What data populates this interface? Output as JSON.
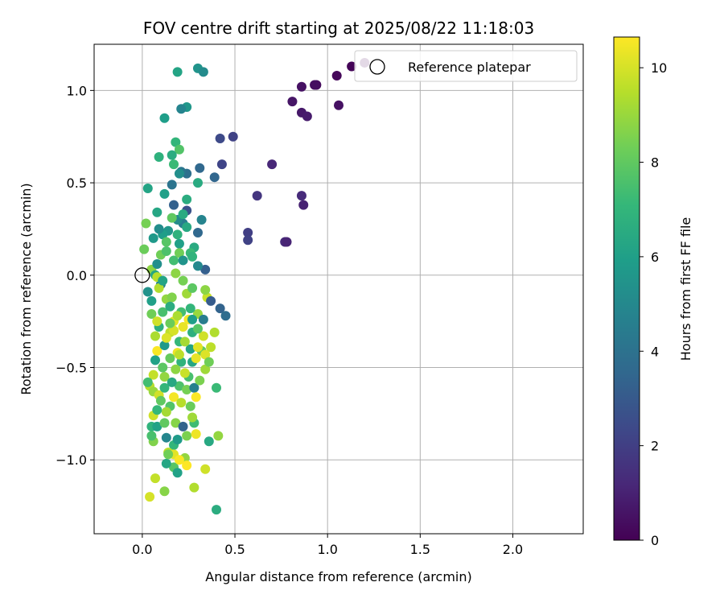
{
  "chart_data": {
    "type": "scatter",
    "title": "FOV centre drift starting at 2025/08/22 11:18:03",
    "xlabel": "Angular distance from reference (arcmin)",
    "ylabel": "Rotation from reference (arcmin)",
    "xlim": [
      -0.26,
      2.38
    ],
    "ylim": [
      -1.4,
      1.25
    ],
    "xticks": [
      0.0,
      0.5,
      1.0,
      1.5,
      2.0
    ],
    "xtick_labels": [
      "0.0",
      "0.5",
      "1.0",
      "1.5",
      "2.0"
    ],
    "yticks": [
      -1.0,
      -0.5,
      0.0,
      0.5,
      1.0
    ],
    "ytick_labels": [
      "−1.0",
      "−0.5",
      "0.0",
      "0.5",
      "1.0"
    ],
    "grid": true,
    "legend": {
      "placement": "top-right",
      "label": "Reference platepar",
      "marker": "open-circle"
    },
    "reference_point": {
      "x": 0.0,
      "y": 0.0
    },
    "colormap": "viridis",
    "colorbar": {
      "label": "Hours from first FF file",
      "range": [
        0,
        10.65
      ],
      "ticks": [
        0,
        2,
        4,
        6,
        8,
        10
      ],
      "tick_labels": [
        "0",
        "2",
        "4",
        "6",
        "8",
        "10"
      ],
      "stops": [
        "#440154",
        "#482878",
        "#3e4989",
        "#31688e",
        "#26828e",
        "#1f9e89",
        "#35b779",
        "#6ece58",
        "#b5de2b",
        "#fde725"
      ]
    },
    "points": [
      {
        "x": 1.13,
        "y": 1.13,
        "h": 0.1
      },
      {
        "x": 1.2,
        "y": 1.15,
        "h": 0.1
      },
      {
        "x": 1.05,
        "y": 1.08,
        "h": 0.2
      },
      {
        "x": 0.94,
        "y": 1.03,
        "h": 0.3
      },
      {
        "x": 0.93,
        "y": 1.03,
        "h": 0.4
      },
      {
        "x": 0.86,
        "y": 1.02,
        "h": 0.5
      },
      {
        "x": 1.06,
        "y": 0.92,
        "h": 0.5
      },
      {
        "x": 0.81,
        "y": 0.94,
        "h": 0.6
      },
      {
        "x": 0.86,
        "y": 0.88,
        "h": 0.7
      },
      {
        "x": 0.89,
        "y": 0.86,
        "h": 0.8
      },
      {
        "x": 0.7,
        "y": 0.6,
        "h": 1.2
      },
      {
        "x": 0.86,
        "y": 0.43,
        "h": 1.3
      },
      {
        "x": 0.87,
        "y": 0.38,
        "h": 1.0
      },
      {
        "x": 0.77,
        "y": 0.18,
        "h": 1.3
      },
      {
        "x": 0.78,
        "y": 0.18,
        "h": 1.1
      },
      {
        "x": 0.62,
        "y": 0.43,
        "h": 1.7
      },
      {
        "x": 0.57,
        "y": 0.23,
        "h": 2.0
      },
      {
        "x": 0.57,
        "y": 0.19,
        "h": 2.1
      },
      {
        "x": 0.49,
        "y": 0.75,
        "h": 2.1
      },
      {
        "x": 0.42,
        "y": 0.74,
        "h": 2.4
      },
      {
        "x": 0.43,
        "y": 0.6,
        "h": 2.2
      },
      {
        "x": 0.39,
        "y": 0.53,
        "h": 3.5
      },
      {
        "x": 0.31,
        "y": 0.58,
        "h": 3.6
      },
      {
        "x": 0.24,
        "y": 0.55,
        "h": 3.9
      },
      {
        "x": 0.21,
        "y": 0.56,
        "h": 4.2
      },
      {
        "x": 0.16,
        "y": 0.49,
        "h": 4.1
      },
      {
        "x": 0.17,
        "y": 0.38,
        "h": 3.3
      },
      {
        "x": 0.24,
        "y": 0.35,
        "h": 2.7
      },
      {
        "x": 0.3,
        "y": 0.23,
        "h": 3.6
      },
      {
        "x": 0.32,
        "y": 0.3,
        "h": 4.8
      },
      {
        "x": 0.34,
        "y": 0.03,
        "h": 3.2
      },
      {
        "x": 0.22,
        "y": 0.28,
        "h": 4.5
      },
      {
        "x": 0.19,
        "y": 0.3,
        "h": 5.1
      },
      {
        "x": 0.14,
        "y": 0.24,
        "h": 5.6
      },
      {
        "x": 0.11,
        "y": 0.22,
        "h": 5.9
      },
      {
        "x": 0.09,
        "y": 0.25,
        "h": 5.2
      },
      {
        "x": 0.2,
        "y": 0.17,
        "h": 6.0
      },
      {
        "x": 0.24,
        "y": 0.26,
        "h": 6.4
      },
      {
        "x": 0.28,
        "y": 0.15,
        "h": 6.5
      },
      {
        "x": 0.3,
        "y": 0.05,
        "h": 5.0
      },
      {
        "x": 0.26,
        "y": 0.12,
        "h": 7.2
      },
      {
        "x": 0.17,
        "y": 0.08,
        "h": 7.4
      },
      {
        "x": 0.13,
        "y": 0.18,
        "h": 7.8
      },
      {
        "x": 0.1,
        "y": 0.11,
        "h": 8.3
      },
      {
        "x": 0.05,
        "y": 0.03,
        "h": 8.8
      },
      {
        "x": 0.07,
        "y": 0.0,
        "h": 6.3
      },
      {
        "x": 0.1,
        "y": -0.05,
        "h": 4.7
      },
      {
        "x": 0.03,
        "y": -0.09,
        "h": 5.4
      },
      {
        "x": 0.05,
        "y": -0.14,
        "h": 6.0
      },
      {
        "x": 0.13,
        "y": -0.13,
        "h": 8.9
      },
      {
        "x": 0.24,
        "y": -0.1,
        "h": 9.1
      },
      {
        "x": 0.35,
        "y": -0.12,
        "h": 9.8
      },
      {
        "x": 0.37,
        "y": -0.14,
        "h": 3.1
      },
      {
        "x": 0.42,
        "y": -0.18,
        "h": 3.4
      },
      {
        "x": 0.45,
        "y": -0.22,
        "h": 3.8
      },
      {
        "x": 0.3,
        "y": -0.21,
        "h": 9.0
      },
      {
        "x": 0.17,
        "y": -0.25,
        "h": 10.2
      },
      {
        "x": 0.21,
        "y": -0.2,
        "h": 7.4
      },
      {
        "x": 0.15,
        "y": -0.31,
        "h": 9.6
      },
      {
        "x": 0.27,
        "y": -0.31,
        "h": 6.7
      },
      {
        "x": 0.33,
        "y": -0.33,
        "h": 9.9
      },
      {
        "x": 0.39,
        "y": -0.31,
        "h": 9.4
      },
      {
        "x": 0.37,
        "y": -0.39,
        "h": 9.6
      },
      {
        "x": 0.32,
        "y": -0.41,
        "h": 8.1
      },
      {
        "x": 0.34,
        "y": -0.43,
        "h": 10.1
      },
      {
        "x": 0.26,
        "y": -0.4,
        "h": 6.2
      },
      {
        "x": 0.19,
        "y": -0.42,
        "h": 10.4
      },
      {
        "x": 0.08,
        "y": -0.41,
        "h": 10.6
      },
      {
        "x": 0.07,
        "y": -0.33,
        "h": 9.3
      },
      {
        "x": 0.12,
        "y": -0.38,
        "h": 5.7
      },
      {
        "x": 0.2,
        "y": -0.36,
        "h": 7.1
      },
      {
        "x": 0.27,
        "y": -0.47,
        "h": 6.3
      },
      {
        "x": 0.34,
        "y": -0.51,
        "h": 9.1
      },
      {
        "x": 0.25,
        "y": -0.55,
        "h": 7.5
      },
      {
        "x": 0.23,
        "y": -0.53,
        "h": 9.8
      },
      {
        "x": 0.12,
        "y": -0.55,
        "h": 8.9
      },
      {
        "x": 0.06,
        "y": -0.54,
        "h": 9.7
      },
      {
        "x": 0.04,
        "y": -0.6,
        "h": 9.5
      },
      {
        "x": 0.06,
        "y": -0.63,
        "h": 9.0
      },
      {
        "x": 0.09,
        "y": -0.65,
        "h": 9.9
      },
      {
        "x": 0.12,
        "y": -0.61,
        "h": 7.0
      },
      {
        "x": 0.17,
        "y": -0.66,
        "h": 10.5
      },
      {
        "x": 0.2,
        "y": -0.6,
        "h": 7.6
      },
      {
        "x": 0.24,
        "y": -0.62,
        "h": 8.4
      },
      {
        "x": 0.28,
        "y": -0.61,
        "h": 4.6
      },
      {
        "x": 0.29,
        "y": -0.66,
        "h": 10.6
      },
      {
        "x": 0.26,
        "y": -0.71,
        "h": 8.2
      },
      {
        "x": 0.15,
        "y": -0.71,
        "h": 7.7
      },
      {
        "x": 0.13,
        "y": -0.74,
        "h": 9.2
      },
      {
        "x": 0.06,
        "y": -0.76,
        "h": 9.9
      },
      {
        "x": 0.05,
        "y": -0.82,
        "h": 6.9
      },
      {
        "x": 0.08,
        "y": -0.82,
        "h": 6.1
      },
      {
        "x": 0.12,
        "y": -0.8,
        "h": 8.0
      },
      {
        "x": 0.18,
        "y": -0.8,
        "h": 8.7
      },
      {
        "x": 0.22,
        "y": -0.82,
        "h": 3.4
      },
      {
        "x": 0.28,
        "y": -0.8,
        "h": 7.3
      },
      {
        "x": 0.24,
        "y": -0.87,
        "h": 8.5
      },
      {
        "x": 0.29,
        "y": -0.86,
        "h": 10.4
      },
      {
        "x": 0.36,
        "y": -0.9,
        "h": 6.4
      },
      {
        "x": 0.41,
        "y": -0.87,
        "h": 8.9
      },
      {
        "x": 0.06,
        "y": -0.9,
        "h": 8.6
      },
      {
        "x": 0.13,
        "y": -0.88,
        "h": 4.9
      },
      {
        "x": 0.17,
        "y": -0.92,
        "h": 7.0
      },
      {
        "x": 0.14,
        "y": -0.96,
        "h": 9.6
      },
      {
        "x": 0.17,
        "y": -0.97,
        "h": 10.2
      },
      {
        "x": 0.23,
        "y": -0.99,
        "h": 8.9
      },
      {
        "x": 0.24,
        "y": -1.03,
        "h": 10.7
      },
      {
        "x": 0.17,
        "y": -1.04,
        "h": 7.8
      },
      {
        "x": 0.13,
        "y": -1.02,
        "h": 6.3
      },
      {
        "x": 0.19,
        "y": -1.07,
        "h": 6.1
      },
      {
        "x": 0.34,
        "y": -1.05,
        "h": 9.9
      },
      {
        "x": 0.07,
        "y": -1.1,
        "h": 9.7
      },
      {
        "x": 0.12,
        "y": -1.17,
        "h": 8.7
      },
      {
        "x": 0.28,
        "y": -1.15,
        "h": 9.4
      },
      {
        "x": 0.04,
        "y": -1.2,
        "h": 10.0
      },
      {
        "x": 0.4,
        "y": -1.27,
        "h": 6.6
      },
      {
        "x": 0.4,
        "y": -0.61,
        "h": 7.2
      },
      {
        "x": 0.19,
        "y": 1.1,
        "h": 6.2
      },
      {
        "x": 0.3,
        "y": 1.12,
        "h": 5.5
      },
      {
        "x": 0.33,
        "y": 1.1,
        "h": 5.1
      },
      {
        "x": 0.24,
        "y": 0.91,
        "h": 5.6
      },
      {
        "x": 0.21,
        "y": 0.9,
        "h": 4.8
      },
      {
        "x": 0.12,
        "y": 0.85,
        "h": 5.9
      },
      {
        "x": 0.18,
        "y": 0.72,
        "h": 7.0
      },
      {
        "x": 0.2,
        "y": 0.68,
        "h": 7.7
      },
      {
        "x": 0.09,
        "y": 0.64,
        "h": 6.8
      },
      {
        "x": 0.16,
        "y": 0.65,
        "h": 6.6
      },
      {
        "x": 0.17,
        "y": 0.6,
        "h": 7.2
      },
      {
        "x": 0.2,
        "y": 0.55,
        "h": 5.3
      },
      {
        "x": 0.3,
        "y": 0.5,
        "h": 6.5
      },
      {
        "x": 0.03,
        "y": 0.47,
        "h": 6.2
      },
      {
        "x": 0.12,
        "y": 0.44,
        "h": 6.0
      },
      {
        "x": 0.24,
        "y": 0.41,
        "h": 6.6
      },
      {
        "x": 0.08,
        "y": 0.34,
        "h": 6.3
      },
      {
        "x": 0.02,
        "y": 0.28,
        "h": 8.4
      },
      {
        "x": 0.16,
        "y": 0.31,
        "h": 8.0
      },
      {
        "x": 0.22,
        "y": 0.33,
        "h": 6.5
      },
      {
        "x": 0.01,
        "y": 0.14,
        "h": 8.2
      },
      {
        "x": 0.13,
        "y": 0.13,
        "h": 7.6
      },
      {
        "x": 0.2,
        "y": 0.12,
        "h": 8.3
      },
      {
        "x": 0.27,
        "y": 0.1,
        "h": 6.9
      },
      {
        "x": 0.08,
        "y": -0.01,
        "h": 9.5
      },
      {
        "x": 0.18,
        "y": 0.01,
        "h": 8.8
      },
      {
        "x": 0.22,
        "y": -0.03,
        "h": 8.4
      },
      {
        "x": 0.27,
        "y": -0.07,
        "h": 7.9
      },
      {
        "x": 0.34,
        "y": -0.08,
        "h": 8.8
      },
      {
        "x": 0.09,
        "y": -0.07,
        "h": 9.4
      },
      {
        "x": 0.16,
        "y": -0.12,
        "h": 8.6
      },
      {
        "x": 0.05,
        "y": -0.21,
        "h": 8.3
      },
      {
        "x": 0.11,
        "y": -0.2,
        "h": 7.5
      },
      {
        "x": 0.19,
        "y": -0.22,
        "h": 9.3
      },
      {
        "x": 0.25,
        "y": -0.24,
        "h": 10.5
      },
      {
        "x": 0.3,
        "y": -0.29,
        "h": 7.8
      },
      {
        "x": 0.09,
        "y": -0.28,
        "h": 6.7
      },
      {
        "x": 0.13,
        "y": -0.34,
        "h": 10.1
      },
      {
        "x": 0.23,
        "y": -0.36,
        "h": 9.2
      },
      {
        "x": 0.15,
        "y": -0.45,
        "h": 8.1
      },
      {
        "x": 0.21,
        "y": -0.47,
        "h": 6.9
      },
      {
        "x": 0.29,
        "y": -0.45,
        "h": 10.3
      },
      {
        "x": 0.36,
        "y": -0.47,
        "h": 8.3
      },
      {
        "x": 0.11,
        "y": -0.5,
        "h": 7.9
      },
      {
        "x": 0.18,
        "y": -0.51,
        "h": 8.8
      },
      {
        "x": 0.31,
        "y": -0.57,
        "h": 8.5
      },
      {
        "x": 0.03,
        "y": -0.58,
        "h": 7.4
      },
      {
        "x": 0.1,
        "y": -0.68,
        "h": 8.0
      },
      {
        "x": 0.21,
        "y": -0.69,
        "h": 9.5
      },
      {
        "x": 0.27,
        "y": -0.77,
        "h": 9.1
      },
      {
        "x": 0.08,
        "y": -0.73,
        "h": 7.1
      },
      {
        "x": 0.05,
        "y": -0.87,
        "h": 7.5
      },
      {
        "x": 0.19,
        "y": -0.89,
        "h": 5.8
      },
      {
        "x": 0.14,
        "y": -0.97,
        "h": 8.3
      },
      {
        "x": 0.2,
        "y": -1.0,
        "h": 10.6
      },
      {
        "x": 0.06,
        "y": 0.2,
        "h": 5.7
      },
      {
        "x": 0.08,
        "y": 0.06,
        "h": 5.3
      },
      {
        "x": 0.19,
        "y": 0.22,
        "h": 6.8
      },
      {
        "x": 0.22,
        "y": 0.08,
        "h": 5.5
      },
      {
        "x": 0.11,
        "y": -0.03,
        "h": 6.2
      },
      {
        "x": 0.15,
        "y": -0.17,
        "h": 6.6
      },
      {
        "x": 0.26,
        "y": -0.18,
        "h": 7.0
      },
      {
        "x": 0.07,
        "y": -0.46,
        "h": 6.1
      },
      {
        "x": 0.16,
        "y": -0.58,
        "h": 6.4
      },
      {
        "x": 0.27,
        "y": -0.24,
        "h": 5.9
      },
      {
        "x": 0.33,
        "y": -0.24,
        "h": 4.5
      },
      {
        "x": 0.08,
        "y": -0.25,
        "h": 9.9
      },
      {
        "x": 0.17,
        "y": -0.3,
        "h": 10.0
      },
      {
        "x": 0.2,
        "y": -0.43,
        "h": 9.6
      },
      {
        "x": 0.22,
        "y": -0.28,
        "h": 10.3
      },
      {
        "x": 0.3,
        "y": -0.39,
        "h": 10.2
      },
      {
        "x": 0.15,
        "y": -0.26,
        "h": 8.2
      }
    ]
  }
}
